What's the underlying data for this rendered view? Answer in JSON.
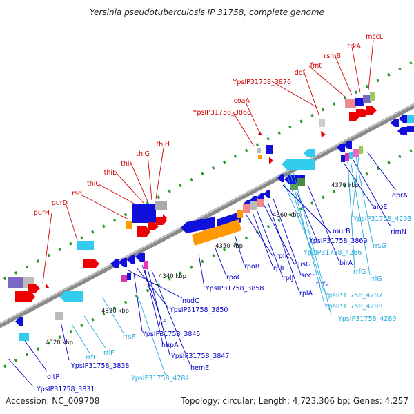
{
  "title": "Yersinia pseudotuberculosis IP 31758, complete genome",
  "footer": {
    "accession": "Accession: NC_009708",
    "summary": "Topology: circular; Length: 4,723,306 bp; Genes: 4,257"
  },
  "colors": {
    "backbone": "#8a8a8a",
    "forward_gene": "#ee0000",
    "reverse_gene": "#1010dd",
    "cds_orange": "#ff9900",
    "rna_cyan": "#33ccee",
    "red_label": "#d00000",
    "blue_label": "#0000c8",
    "cyan_label": "#22aadd"
  },
  "scale_labels": [
    "4320 kbp",
    "4330 kbp",
    "4340 kbp",
    "4350 kbp",
    "4360 kbp",
    "4370 kbp"
  ],
  "labels_top": [
    "purH",
    "purD",
    "rsd",
    "thiC",
    "thiE",
    "thiF",
    "thiG",
    "thiH",
    "YpsIP31758_3868",
    "coaA",
    "YpsIP31758_3876",
    "def",
    "fmt",
    "rsmB",
    "trkA",
    "mscL"
  ],
  "labels_bottom_blue": [
    "YpsIP31758_3831",
    "gltP",
    "YpsIP31758_3838",
    "nudC",
    "YpsIP31758_3850",
    "nfi",
    "YpsIP31758_3845",
    "hupA",
    "YpsIP31758_3847",
    "hemE",
    "YpsIP31758_3858",
    "rpoC",
    "rpoB",
    "rplK",
    "rplL",
    "rplJ",
    "nusG",
    "rplA",
    "secE",
    "tuf2",
    "murB",
    "YpsIP31758_3869",
    "birA",
    "aroE",
    "rimN",
    "dprA"
  ],
  "labels_bottom_cyan": [
    "rrfF",
    "rrlF",
    "rrsF",
    "YpsIP31758_4284",
    "YpsIP31758_4286",
    "YpsIP31758_4287",
    "YpsIP31758_4288",
    "YpsIP31758_4289",
    "rrfG",
    "rrlG",
    "rrsG",
    "YpsIP31758_4293"
  ]
}
